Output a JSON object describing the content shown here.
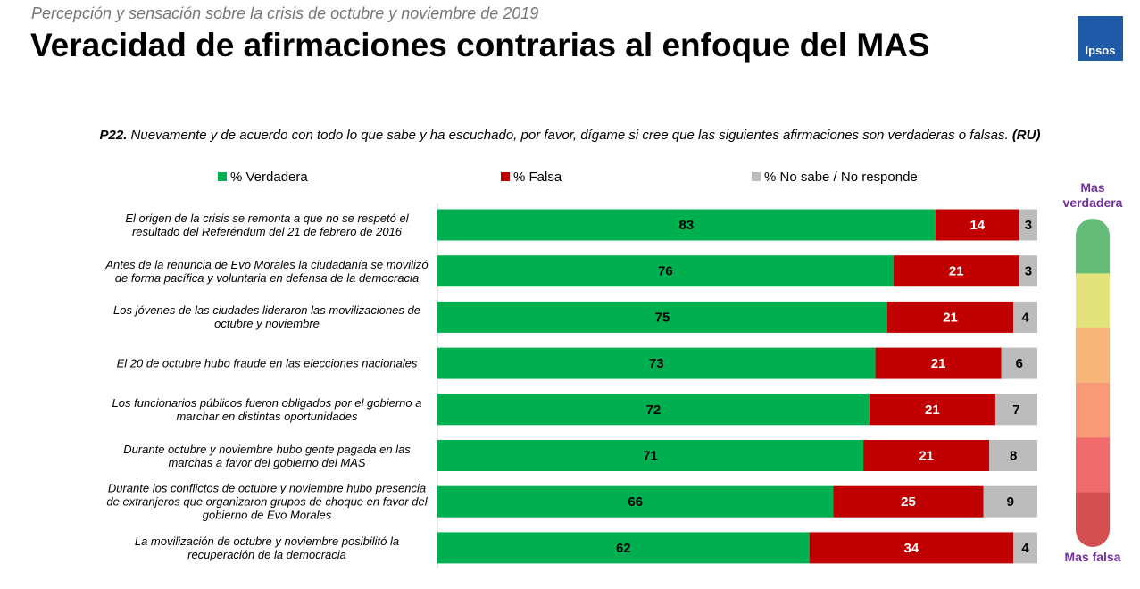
{
  "header": {
    "subtitle": "Percepción y sensación sobre la crisis de octubre y noviembre de 2019",
    "title": "Veracidad de afirmaciones contrarias al enfoque del MAS",
    "logo": "Ipsos"
  },
  "question": {
    "label": "P22.",
    "text": "Nuevamente y de acuerdo con todo lo que sabe y ha escuchado, por favor, dígame si cree que las siguientes afirmaciones son verdaderas o falsas.",
    "suffix": "(RU)"
  },
  "scale": {
    "top": "Mas verdadera",
    "bottom": "Mas falsa",
    "colors": [
      "#65bb78",
      "#e2e47b",
      "#f8b57a",
      "#f89a78",
      "#f06b6b",
      "#d44f4f"
    ]
  },
  "chart_data": {
    "type": "bar",
    "orientation": "horizontal",
    "stacked": true,
    "categories": [
      "El origen de la crisis se remonta a que no se respetó el resultado del Referéndum del 21 de febrero de 2016",
      "Antes de la renuncia de Evo Morales la ciudadanía se movilizó de forma pacífica y voluntaria en defensa de la democracia",
      "Los jóvenes de las ciudades lideraron las movilizaciones de octubre y noviembre",
      "El 20 de octubre hubo fraude en las elecciones nacionales",
      "Los funcionarios públicos fueron obligados por el gobierno a marchar en distintas oportunidades",
      "Durante octubre y noviembre hubo gente pagada en las marchas a favor del gobierno del MAS",
      "Durante los conflictos de octubre y noviembre hubo presencia de extranjeros que organizaron grupos de choque en favor del gobierno de Evo Morales",
      "La movilización de octubre y noviembre posibilitó la recuperación de la democracia"
    ],
    "series": [
      {
        "name": "% Verdadera",
        "color": "#00b050",
        "label_color": "#000000",
        "values": [
          83,
          76,
          75,
          73,
          72,
          71,
          66,
          62
        ]
      },
      {
        "name": "% Falsa",
        "color": "#c00000",
        "label_color": "#ffffff",
        "values": [
          14,
          21,
          21,
          21,
          21,
          21,
          25,
          34
        ]
      },
      {
        "name": "% No sabe / No responde",
        "color": "#bcbcbc",
        "label_color": "#000000",
        "values": [
          3,
          3,
          4,
          6,
          7,
          8,
          9,
          4
        ]
      }
    ],
    "xlim": [
      0,
      100
    ],
    "legend": "top"
  }
}
